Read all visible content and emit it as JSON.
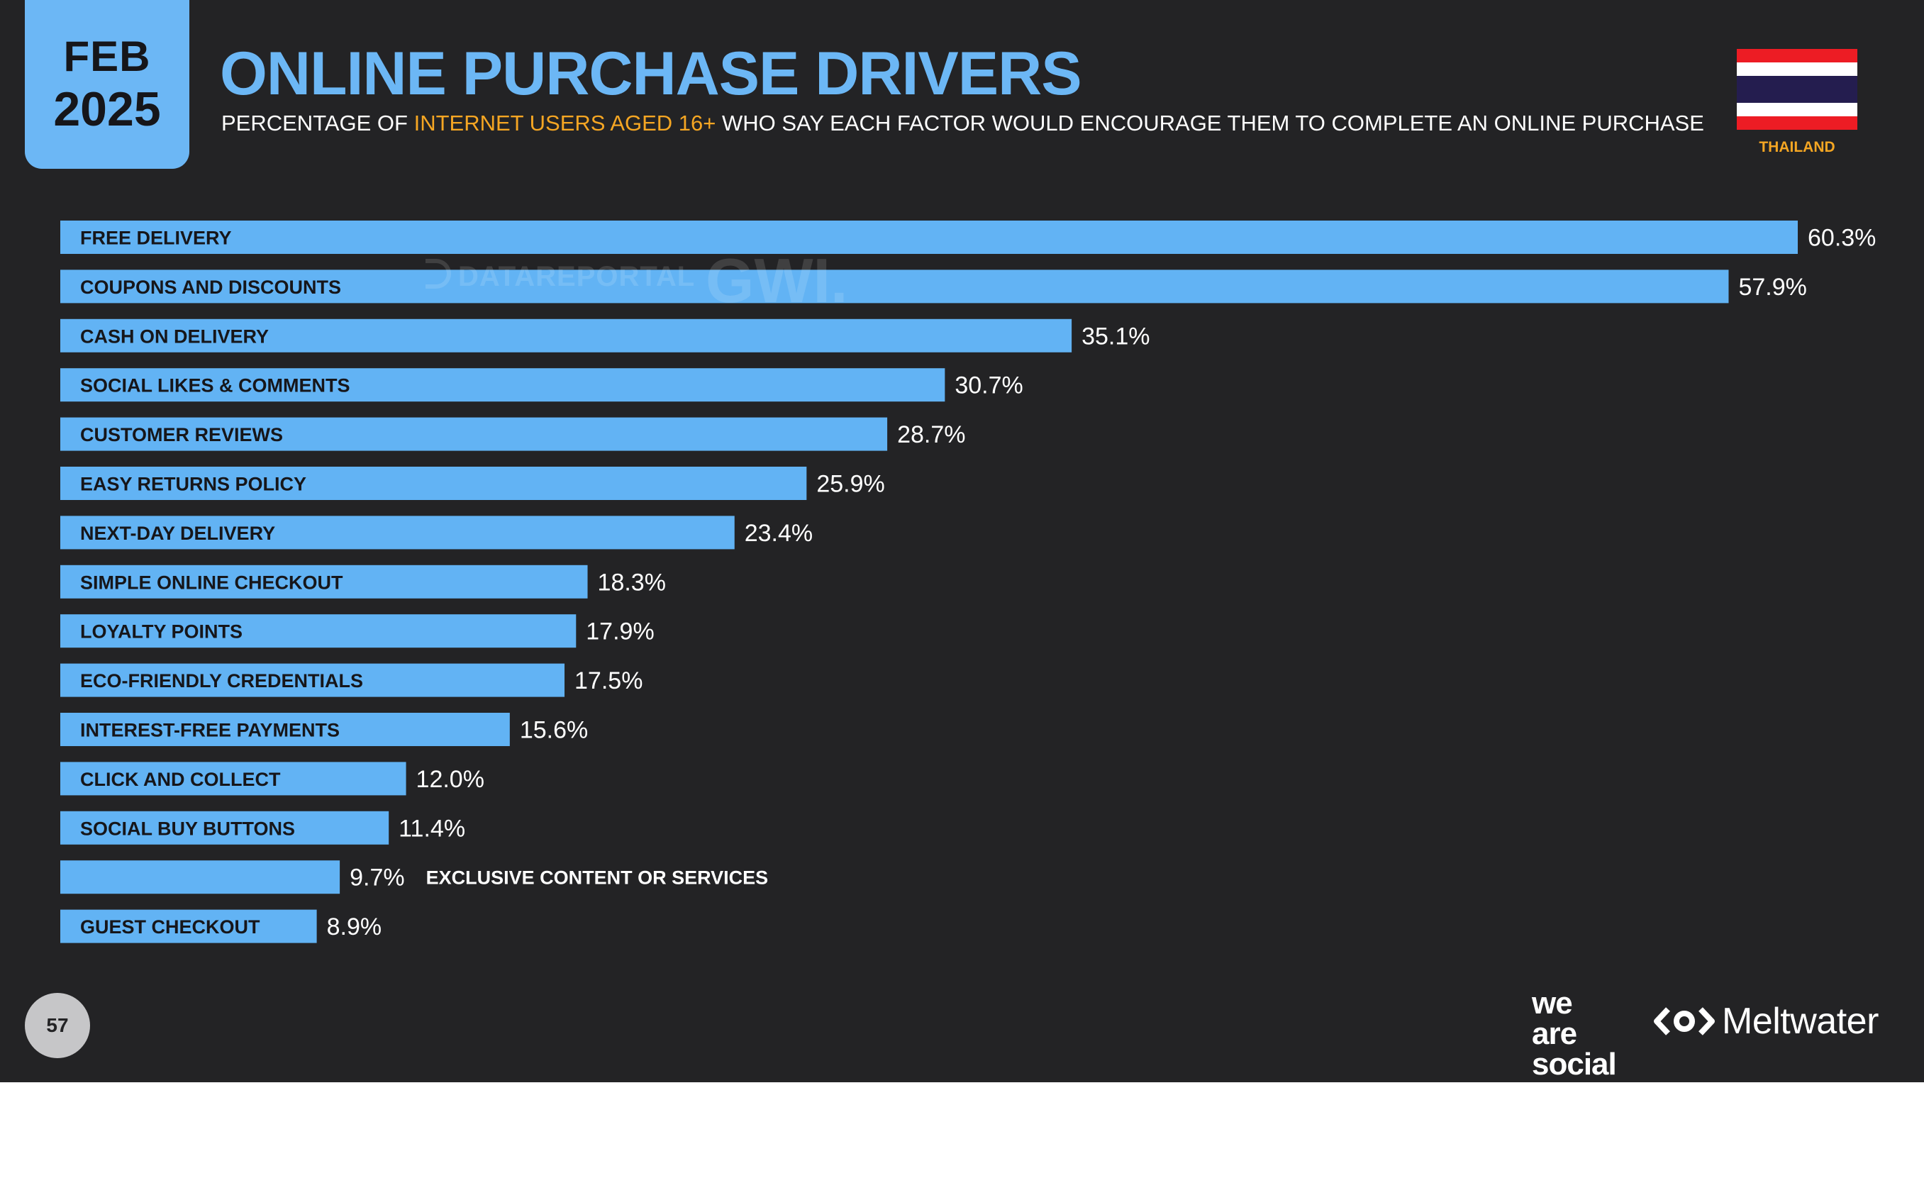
{
  "header": {
    "date_month": "FEB",
    "date_year": "2025",
    "title": "ONLINE PURCHASE DRIVERS",
    "subtitle_pre": "PERCENTAGE OF ",
    "subtitle_highlight": "INTERNET USERS AGED 16+",
    "subtitle_post": " WHO SAY EACH FACTOR WOULD ENCOURAGE THEM TO COMPLETE AN ONLINE PURCHASE",
    "country": "THAILAND"
  },
  "watermark": {
    "datareportal": "DATAREPORTAL",
    "gwi": "GWI."
  },
  "footer": {
    "page_number": "57",
    "brand_1": [
      "we",
      "are",
      "social"
    ],
    "brand_2": "Meltwater"
  },
  "colors": {
    "background": "#232325",
    "bar": "#62b3f4",
    "accent": "#f5a623",
    "flag_red": "#ed1c24",
    "flag_white": "#ffffff",
    "flag_blue": "#241d4f"
  },
  "chart_data": {
    "type": "bar",
    "orientation": "horizontal",
    "grid": false,
    "legend": "none",
    "xlim": [
      0,
      60.3
    ],
    "categories": [
      "FREE DELIVERY",
      "COUPONS AND DISCOUNTS",
      "CASH ON DELIVERY",
      "SOCIAL LIKES & COMMENTS",
      "CUSTOMER REVIEWS",
      "EASY RETURNS POLICY",
      "NEXT-DAY DELIVERY",
      "SIMPLE ONLINE CHECKOUT",
      "LOYALTY POINTS",
      "ECO-FRIENDLY CREDENTIALS",
      "INTEREST-FREE PAYMENTS",
      "CLICK AND COLLECT",
      "SOCIAL BUY BUTTONS",
      "EXCLUSIVE CONTENT OR SERVICES",
      "GUEST CHECKOUT"
    ],
    "values": [
      60.3,
      57.9,
      35.1,
      30.7,
      28.7,
      25.9,
      23.4,
      18.3,
      17.9,
      17.5,
      15.6,
      12.0,
      11.4,
      9.7,
      8.9
    ],
    "value_labels": [
      "60.3%",
      "57.9%",
      "35.1%",
      "30.7%",
      "28.7%",
      "25.9%",
      "23.4%",
      "18.3%",
      "17.9%",
      "17.5%",
      "15.6%",
      "12.0%",
      "11.4%",
      "9.7%",
      "8.9%"
    ]
  }
}
